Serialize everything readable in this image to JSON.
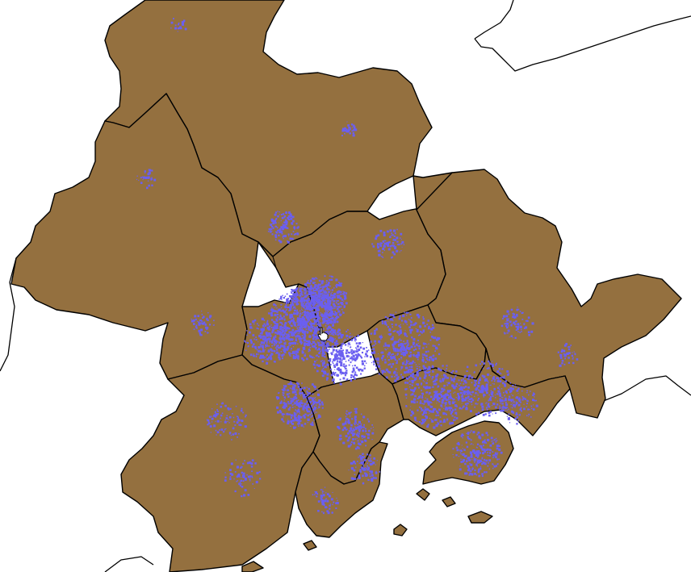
{
  "map": {
    "land_color": "#94703f",
    "urban_color": "#6b5ff0",
    "sea_color": "#ffffff",
    "border_color": "#000000",
    "districts": [
      "northwest-district",
      "north-central-district",
      "west-district",
      "central-urban-district",
      "northeast-district",
      "east-district",
      "southwest-district",
      "south-central-district",
      "southern-peninsula-district",
      "southeast-coastal-district",
      "island-district"
    ]
  },
  "cursor": {
    "icon": "hand-pointer-icon"
  }
}
